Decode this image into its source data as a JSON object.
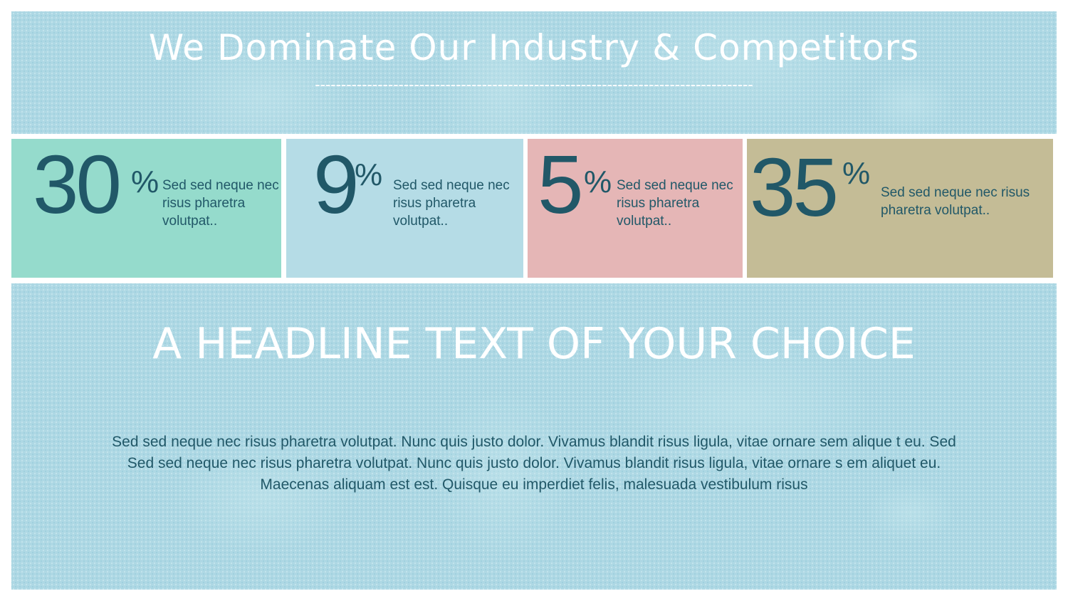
{
  "title": "We Dominate Our Industry & Competitors",
  "divider": "------------------------------------------------------------------------------------",
  "stats": [
    {
      "value": "30",
      "unit": "%",
      "text": "Sed sed neque nec risus pharetra volutpat..",
      "color": "#95dbcc"
    },
    {
      "value": "9",
      "unit": "%",
      "text": "Sed sed neque nec risus pharetra volutpat..",
      "color": "#b5dce6"
    },
    {
      "value": "5",
      "unit": "%",
      "text": "Sed sed neque nec risus pharetra volutpat..",
      "color": "#e5b6b6"
    },
    {
      "value": "35",
      "unit": "%",
      "text": "Sed sed neque nec risus pharetra volutpat..",
      "color": "#c4bc96"
    }
  ],
  "headline": "A HEADLINE TEXT OF YOUR CHOICE",
  "body": "Sed sed neque nec risus pharetra volutpat. Nunc quis justo dolor. Vivamus blandit risus ligula, vitae ornare sem alique t eu. Sed Sed sed neque nec risus pharetra volutpat. Nunc quis justo dolor. Vivamus blandit risus ligula, vitae ornare s em aliquet eu. Maecenas aliquam est est. Quisque eu imperdiet felis, malesuada vestibulum risus",
  "colors": {
    "text": "#215868",
    "background": "#aed8e4"
  }
}
